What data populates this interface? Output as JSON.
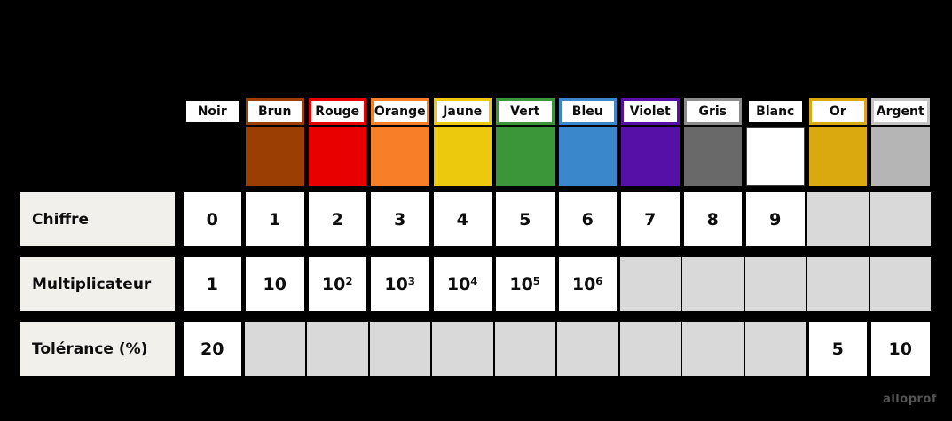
{
  "table": {
    "columns": [
      {
        "key": "noir",
        "name": "Noir",
        "swatch": "#000000",
        "header_border": "#000000"
      },
      {
        "key": "brun",
        "name": "Brun",
        "swatch": "#9A3E04",
        "header_border": "#9A3E04"
      },
      {
        "key": "rouge",
        "name": "Rouge",
        "swatch": "#E80000",
        "header_border": "#E80000"
      },
      {
        "key": "orange",
        "name": "Orange",
        "swatch": "#F87E27",
        "header_border": "#F87E27"
      },
      {
        "key": "jaune",
        "name": "Jaune",
        "swatch": "#EDC90D",
        "header_border": "#EDC90D"
      },
      {
        "key": "vert",
        "name": "Vert",
        "swatch": "#3B9539",
        "header_border": "#3B9539"
      },
      {
        "key": "bleu",
        "name": "Bleu",
        "swatch": "#3A87CC",
        "header_border": "#3A87CC"
      },
      {
        "key": "violet",
        "name": "Violet",
        "swatch": "#5610A8",
        "header_border": "#5610A8"
      },
      {
        "key": "gris",
        "name": "Gris",
        "swatch": "#696969",
        "header_border": "#8C8C8C"
      },
      {
        "key": "blanc",
        "name": "Blanc",
        "swatch": "#FFFFFF",
        "header_border": "#000000",
        "swatch_outlined": true
      },
      {
        "key": "or",
        "name": "Or",
        "swatch": "#D9A90F",
        "header_border": "#D9A90F"
      },
      {
        "key": "argent",
        "name": "Argent",
        "swatch": "#B5B5B5",
        "header_border": "#C4C4C4"
      }
    ],
    "rows": [
      {
        "key": "chiffre",
        "label": "Chiffre",
        "cells": [
          "0",
          "1",
          "2",
          "3",
          "4",
          "5",
          "6",
          "7",
          "8",
          "9",
          "",
          ""
        ]
      },
      {
        "key": "multiplicateur",
        "label": "Multiplicateur",
        "cells": [
          "1",
          "10",
          "10²",
          "10³",
          "10⁴",
          "10⁵",
          "10⁶",
          "",
          "",
          "",
          "",
          ""
        ]
      },
      {
        "key": "tolerance",
        "label": "Tolérance (%)",
        "cells": [
          "20",
          "",
          "",
          "",
          "",
          "",
          "",
          "",
          "",
          "",
          "5",
          "10"
        ]
      }
    ]
  },
  "colors": {
    "background": "#000000",
    "label_bg": "#F2F0EA",
    "cell_bg": "#FFFFFF",
    "empty_cell_bg": "#D9D9D9",
    "text": "#0D0D0D",
    "watermark": "#555555"
  },
  "watermark": "alloprof"
}
